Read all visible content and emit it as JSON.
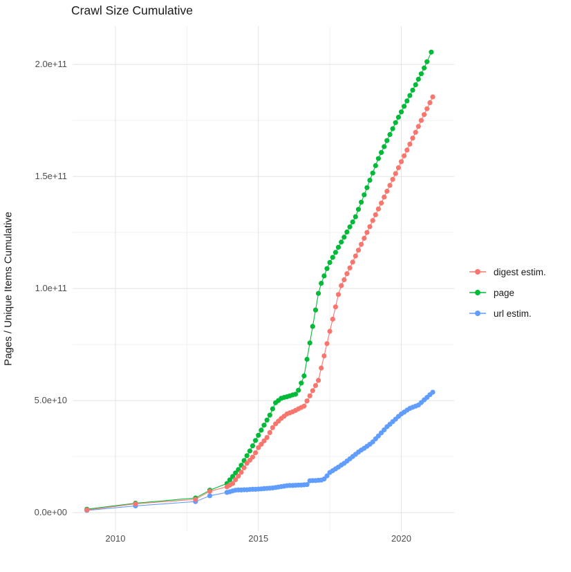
{
  "page": {
    "title": "Crawl Size Cumulative"
  },
  "y_axis": {
    "title": "Pages / Unique Items Cumulative",
    "ticks": [
      {
        "label": "0.0e+00",
        "value_billion": 0
      },
      {
        "label": "5.0e+10",
        "value_billion": 50
      },
      {
        "label": "1.0e+11",
        "value_billion": 100
      },
      {
        "label": "1.5e+11",
        "value_billion": 150
      },
      {
        "label": "2.0e+11",
        "value_billion": 200
      }
    ],
    "minor_billion": [
      25,
      75,
      125,
      175
    ],
    "domain_billion": [
      -8.3,
      217
    ]
  },
  "x_axis": {
    "ticks": [
      {
        "label": "2010",
        "value": 2010
      },
      {
        "label": "2015",
        "value": 2015
      },
      {
        "label": "2020",
        "value": 2020
      }
    ],
    "minor": [
      2012.5,
      2017.5
    ],
    "domain": [
      2008.5,
      2021.85
    ]
  },
  "legend": {
    "position": "right"
  },
  "chart_data": {
    "type": "scatter",
    "title": "Crawl Size Cumulative",
    "xlabel": "",
    "ylabel": "Pages / Unique Items Cumulative",
    "x_unit": "year (decimal)",
    "y_unit": "pages, billions (1e9)",
    "grid": true,
    "legend_position": "right",
    "series": [
      {
        "name": "digest estim.",
        "color": "#F8766D",
        "draw_order": 2,
        "points": [
          [
            2009.0,
            1.2
          ],
          [
            2010.7,
            3.9
          ],
          [
            2012.8,
            5.9
          ],
          [
            2013.3,
            9.5
          ],
          [
            2013.9,
            11.5
          ],
          [
            2014.0,
            12.3
          ],
          [
            2014.1,
            13.0
          ],
          [
            2014.2,
            14.7
          ],
          [
            2014.3,
            16.3
          ],
          [
            2014.4,
            18.0
          ],
          [
            2014.5,
            20.0
          ],
          [
            2014.6,
            22.0
          ],
          [
            2014.7,
            23.4
          ],
          [
            2014.8,
            24.8
          ],
          [
            2014.9,
            26.7
          ],
          [
            2015.0,
            29.0
          ],
          [
            2015.1,
            30.5
          ],
          [
            2015.2,
            32.0
          ],
          [
            2015.3,
            33.5
          ],
          [
            2015.4,
            35.7
          ],
          [
            2015.5,
            37.9
          ],
          [
            2015.6,
            39.6
          ],
          [
            2015.7,
            40.8
          ],
          [
            2015.8,
            42.0
          ],
          [
            2015.9,
            43.0
          ],
          [
            2016.0,
            44.0
          ],
          [
            2016.1,
            44.5
          ],
          [
            2016.2,
            45.0
          ],
          [
            2016.3,
            45.6
          ],
          [
            2016.4,
            46.3
          ],
          [
            2016.5,
            46.9
          ],
          [
            2016.6,
            47.5
          ],
          [
            2016.7,
            49.8
          ],
          [
            2016.8,
            52.1
          ],
          [
            2016.9,
            54.4
          ],
          [
            2017.0,
            56.7
          ],
          [
            2017.1,
            59.0
          ],
          [
            2017.2,
            64.5
          ],
          [
            2017.3,
            69.9
          ],
          [
            2017.4,
            75.4
          ],
          [
            2017.5,
            80.9
          ],
          [
            2017.6,
            86.3
          ],
          [
            2017.7,
            91.8
          ],
          [
            2017.8,
            97.3
          ],
          [
            2017.9,
            101.3
          ],
          [
            2018.0,
            103.9
          ],
          [
            2018.1,
            106.6
          ],
          [
            2018.2,
            109.2
          ],
          [
            2018.3,
            111.8
          ],
          [
            2018.4,
            114.5
          ],
          [
            2018.5,
            117.1
          ],
          [
            2018.6,
            119.7
          ],
          [
            2018.7,
            122.4
          ],
          [
            2018.8,
            125.0
          ],
          [
            2018.9,
            127.6
          ],
          [
            2019.0,
            130.3
          ],
          [
            2019.1,
            132.9
          ],
          [
            2019.2,
            135.5
          ],
          [
            2019.3,
            138.1
          ],
          [
            2019.4,
            140.8
          ],
          [
            2019.5,
            143.4
          ],
          [
            2019.6,
            146.0
          ],
          [
            2019.7,
            148.7
          ],
          [
            2019.8,
            151.3
          ],
          [
            2019.9,
            153.9
          ],
          [
            2020.0,
            156.6
          ],
          [
            2020.1,
            159.2
          ],
          [
            2020.2,
            161.8
          ],
          [
            2020.3,
            164.4
          ],
          [
            2020.4,
            167.1
          ],
          [
            2020.5,
            169.7
          ],
          [
            2020.6,
            172.3
          ],
          [
            2020.7,
            175.0
          ],
          [
            2020.8,
            177.6
          ],
          [
            2020.9,
            180.2
          ],
          [
            2021.0,
            182.9
          ],
          [
            2021.1,
            185.5
          ]
        ]
      },
      {
        "name": "page",
        "color": "#00BA38",
        "draw_order": 0,
        "points": [
          [
            2009.0,
            1.5
          ],
          [
            2010.7,
            4.2
          ],
          [
            2012.8,
            6.5
          ],
          [
            2013.3,
            10.0
          ],
          [
            2013.9,
            13.0
          ],
          [
            2014.0,
            14.6
          ],
          [
            2014.1,
            16.1
          ],
          [
            2014.2,
            17.7
          ],
          [
            2014.3,
            19.2
          ],
          [
            2014.4,
            21.1
          ],
          [
            2014.5,
            23.2
          ],
          [
            2014.6,
            25.4
          ],
          [
            2014.7,
            27.5
          ],
          [
            2014.8,
            29.8
          ],
          [
            2014.9,
            32.2
          ],
          [
            2015.0,
            34.5
          ],
          [
            2015.1,
            36.8
          ],
          [
            2015.2,
            39.0
          ],
          [
            2015.3,
            41.3
          ],
          [
            2015.4,
            43.5
          ],
          [
            2015.5,
            46.3
          ],
          [
            2015.6,
            49.0
          ],
          [
            2015.7,
            50.0
          ],
          [
            2015.8,
            51.0
          ],
          [
            2015.9,
            51.4
          ],
          [
            2016.0,
            51.7
          ],
          [
            2016.1,
            52.1
          ],
          [
            2016.2,
            52.5
          ],
          [
            2016.3,
            52.8
          ],
          [
            2016.4,
            54.6
          ],
          [
            2016.5,
            57.8
          ],
          [
            2016.6,
            61.0
          ],
          [
            2016.7,
            68.4
          ],
          [
            2016.8,
            75.7
          ],
          [
            2016.9,
            83.1
          ],
          [
            2017.0,
            90.4
          ],
          [
            2017.1,
            97.8
          ],
          [
            2017.2,
            102.3
          ],
          [
            2017.3,
            105.6
          ],
          [
            2017.4,
            108.9
          ],
          [
            2017.5,
            111.6
          ],
          [
            2017.6,
            113.9
          ],
          [
            2017.7,
            116.1
          ],
          [
            2017.8,
            118.4
          ],
          [
            2017.9,
            120.7
          ],
          [
            2018.0,
            122.9
          ],
          [
            2018.1,
            125.2
          ],
          [
            2018.2,
            127.5
          ],
          [
            2018.3,
            129.7
          ],
          [
            2018.4,
            132.0
          ],
          [
            2018.5,
            135.3
          ],
          [
            2018.6,
            138.5
          ],
          [
            2018.7,
            141.8
          ],
          [
            2018.8,
            145.0
          ],
          [
            2018.9,
            148.3
          ],
          [
            2019.0,
            151.5
          ],
          [
            2019.1,
            154.8
          ],
          [
            2019.2,
            158.0
          ],
          [
            2019.3,
            160.7
          ],
          [
            2019.4,
            163.3
          ],
          [
            2019.5,
            166.0
          ],
          [
            2019.6,
            168.7
          ],
          [
            2019.7,
            171.3
          ],
          [
            2019.8,
            174.0
          ],
          [
            2019.9,
            176.4
          ],
          [
            2020.0,
            178.8
          ],
          [
            2020.1,
            181.3
          ],
          [
            2020.2,
            183.7
          ],
          [
            2020.3,
            186.1
          ],
          [
            2020.4,
            188.5
          ],
          [
            2020.5,
            190.9
          ],
          [
            2020.6,
            193.4
          ],
          [
            2020.7,
            195.8
          ],
          [
            2020.8,
            198.4
          ],
          [
            2020.9,
            201.2
          ],
          [
            2021.05,
            205.5
          ]
        ]
      },
      {
        "name": "url estim.",
        "color": "#619CFF",
        "draw_order": 1,
        "points": [
          [
            2009.0,
            1.0
          ],
          [
            2010.7,
            3.0
          ],
          [
            2012.8,
            4.9
          ],
          [
            2013.3,
            7.5
          ],
          [
            2013.9,
            9.0
          ],
          [
            2014.0,
            9.3
          ],
          [
            2014.1,
            9.7
          ],
          [
            2014.2,
            10.0
          ],
          [
            2014.3,
            10.1
          ],
          [
            2014.4,
            10.1
          ],
          [
            2014.5,
            10.2
          ],
          [
            2014.6,
            10.2
          ],
          [
            2014.7,
            10.3
          ],
          [
            2014.8,
            10.4
          ],
          [
            2014.9,
            10.4
          ],
          [
            2015.0,
            10.5
          ],
          [
            2015.1,
            10.6
          ],
          [
            2015.2,
            10.7
          ],
          [
            2015.3,
            10.8
          ],
          [
            2015.4,
            10.9
          ],
          [
            2015.5,
            11.0
          ],
          [
            2015.6,
            11.2
          ],
          [
            2015.7,
            11.4
          ],
          [
            2015.8,
            11.6
          ],
          [
            2015.9,
            11.8
          ],
          [
            2016.0,
            12.0
          ],
          [
            2016.1,
            12.1
          ],
          [
            2016.2,
            12.1
          ],
          [
            2016.3,
            12.2
          ],
          [
            2016.4,
            12.3
          ],
          [
            2016.5,
            12.3
          ],
          [
            2016.6,
            12.4
          ],
          [
            2016.7,
            12.5
          ],
          [
            2016.8,
            14.2
          ],
          [
            2016.9,
            14.3
          ],
          [
            2017.0,
            14.3
          ],
          [
            2017.1,
            14.4
          ],
          [
            2017.2,
            14.5
          ],
          [
            2017.3,
            15.0
          ],
          [
            2017.4,
            16.4
          ],
          [
            2017.5,
            17.9
          ],
          [
            2017.6,
            18.7
          ],
          [
            2017.7,
            19.5
          ],
          [
            2017.8,
            20.3
          ],
          [
            2017.9,
            21.2
          ],
          [
            2018.0,
            22.0
          ],
          [
            2018.1,
            23.0
          ],
          [
            2018.2,
            24.0
          ],
          [
            2018.3,
            25.0
          ],
          [
            2018.4,
            26.0
          ],
          [
            2018.5,
            27.0
          ],
          [
            2018.6,
            27.9
          ],
          [
            2018.7,
            28.7
          ],
          [
            2018.8,
            29.6
          ],
          [
            2018.9,
            30.5
          ],
          [
            2019.0,
            31.5
          ],
          [
            2019.1,
            32.9
          ],
          [
            2019.2,
            34.2
          ],
          [
            2019.3,
            35.6
          ],
          [
            2019.4,
            36.9
          ],
          [
            2019.5,
            38.3
          ],
          [
            2019.6,
            39.4
          ],
          [
            2019.7,
            40.6
          ],
          [
            2019.8,
            41.7
          ],
          [
            2019.9,
            42.9
          ],
          [
            2020.0,
            44.0
          ],
          [
            2020.1,
            44.8
          ],
          [
            2020.2,
            45.7
          ],
          [
            2020.3,
            46.5
          ],
          [
            2020.4,
            47.0
          ],
          [
            2020.5,
            47.5
          ],
          [
            2020.6,
            48.0
          ],
          [
            2020.7,
            49.1
          ],
          [
            2020.8,
            50.3
          ],
          [
            2020.9,
            51.4
          ],
          [
            2021.0,
            52.6
          ],
          [
            2021.1,
            53.7
          ]
        ]
      }
    ],
    "style": {
      "grid_major": "#e3e3e3",
      "grid_minor": "#f0f0f0",
      "tick_label_color": "#4d4d4d",
      "text_color": "#1a1a1a",
      "background": "#ffffff",
      "point_radius": 3.6,
      "line_width": 1.1
    }
  }
}
